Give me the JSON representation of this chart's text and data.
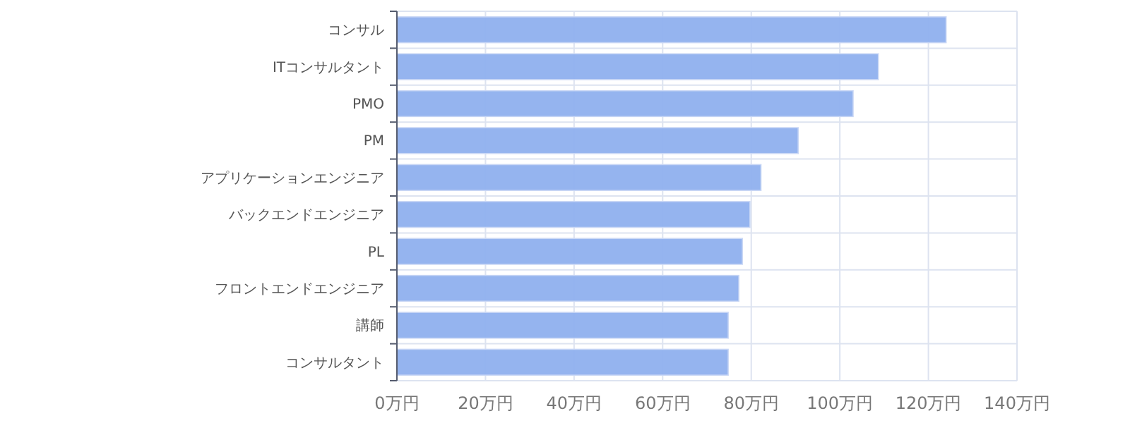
{
  "chart_data": {
    "type": "bar",
    "orientation": "horizontal",
    "categories": [
      "コンサル",
      "ITコンサルタント",
      "PMO",
      "PM",
      "アプリケーションエンジニア",
      "バックエンドエンジニア",
      "PL",
      "フロントエンドエンジニア",
      "講師",
      "コンサルタント"
    ],
    "values": [
      124,
      108.7,
      103,
      90.6,
      82.2,
      79.7,
      78,
      77.2,
      74.8,
      74.8
    ],
    "color": "#8fb0ee",
    "xlim": [
      0,
      140
    ],
    "xticks": [
      {
        "value": 0,
        "label": "0万円"
      },
      {
        "value": 20,
        "label": "20万円"
      },
      {
        "value": 40,
        "label": "40万円"
      },
      {
        "value": 60,
        "label": "60万円"
      },
      {
        "value": 80,
        "label": "80万円"
      },
      {
        "value": 100,
        "label": "100万円"
      },
      {
        "value": 120,
        "label": "120万円"
      },
      {
        "value": 140,
        "label": "140万円"
      }
    ],
    "grid": true
  }
}
